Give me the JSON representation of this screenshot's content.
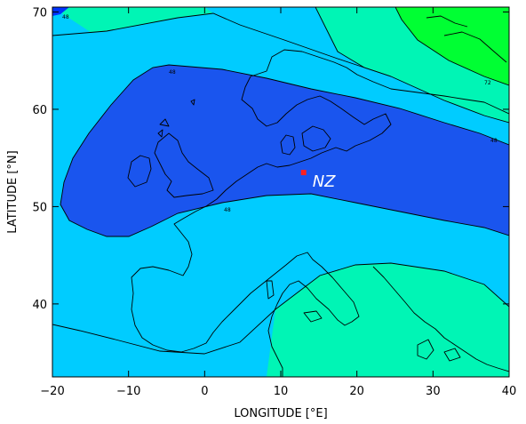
{
  "map": {
    "xaxis": {
      "title": "LONGITUDE [°E]",
      "ticks": [
        "−20",
        "−10",
        "0",
        "10",
        "20",
        "30",
        "40"
      ],
      "range": [
        -20,
        40
      ]
    },
    "yaxis": {
      "title": "LATITUDE [°N]",
      "ticks": [
        "40",
        "50",
        "60",
        "70"
      ],
      "range": [
        32.5,
        70.5
      ]
    },
    "contour_labels": [
      "48",
      "48",
      "48",
      "72",
      "48"
    ],
    "marker": {
      "label": "NZ",
      "lon": 13.0,
      "lat": 53.5,
      "color": "#ff2020"
    },
    "fill_colors": {
      "darkest": "#0033ff",
      "dark": "#1a55ee",
      "mid": "#00ccff",
      "light": "#00f5b5",
      "lightest": "#00ff33"
    }
  }
}
